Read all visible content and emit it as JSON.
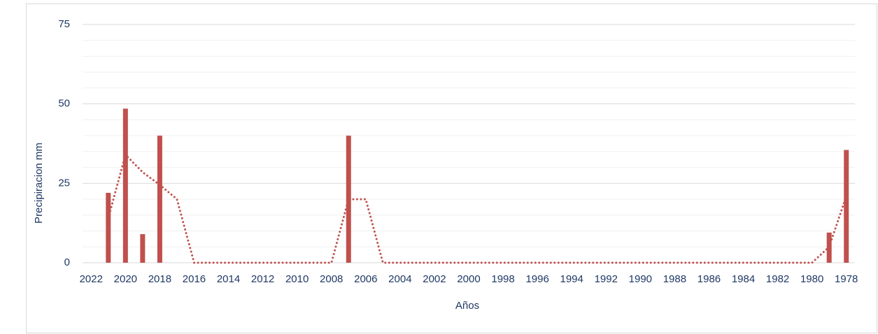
{
  "chart_data": {
    "type": "bar",
    "x_label": "Años",
    "y_label": "Precipiracion mm",
    "categories": [
      "2022",
      null,
      "2020",
      null,
      "2018",
      null,
      "2016",
      null,
      "2014",
      null,
      "2012",
      null,
      "2010",
      null,
      "2008",
      null,
      "2006",
      null,
      "2004",
      null,
      "2002",
      null,
      "2000",
      null,
      "1998",
      null,
      "1996",
      null,
      "1994",
      null,
      "1992",
      null,
      "1990",
      null,
      "1988",
      null,
      "1986",
      null,
      "1984",
      null,
      "1982",
      null,
      "1980",
      null,
      "1978"
    ],
    "series": [
      {
        "type": "bar",
        "color": "#c0504d",
        "values": [
          0,
          22,
          48.5,
          9,
          40,
          0,
          0,
          0,
          0,
          0,
          0,
          0,
          0,
          0,
          0,
          40,
          0,
          0,
          0,
          0,
          0,
          0,
          0,
          0,
          0,
          0,
          0,
          0,
          0,
          0,
          0,
          0,
          0,
          0,
          0,
          0,
          0,
          0,
          0,
          0,
          0,
          0,
          0,
          9.5,
          35.5
        ]
      },
      {
        "type": "line",
        "style": "dotted",
        "color": "#c0504d",
        "values": [
          null,
          14,
          34,
          28.5,
          24.5,
          20,
          0,
          0,
          0,
          0,
          0,
          0,
          0,
          0,
          0,
          20,
          20,
          0,
          0,
          0,
          0,
          0,
          0,
          0,
          0,
          0,
          0,
          0,
          0,
          0,
          0,
          0,
          0,
          0,
          0,
          0,
          0,
          0,
          0,
          0,
          0,
          0,
          0,
          5,
          21
        ]
      }
    ],
    "ylim": [
      0,
      75
    ],
    "yticks": [
      0,
      25,
      50,
      75
    ],
    "minor_yticks": [
      5,
      10,
      15,
      20,
      30,
      35,
      40,
      45,
      55,
      60,
      65,
      70
    ],
    "grid": true
  }
}
